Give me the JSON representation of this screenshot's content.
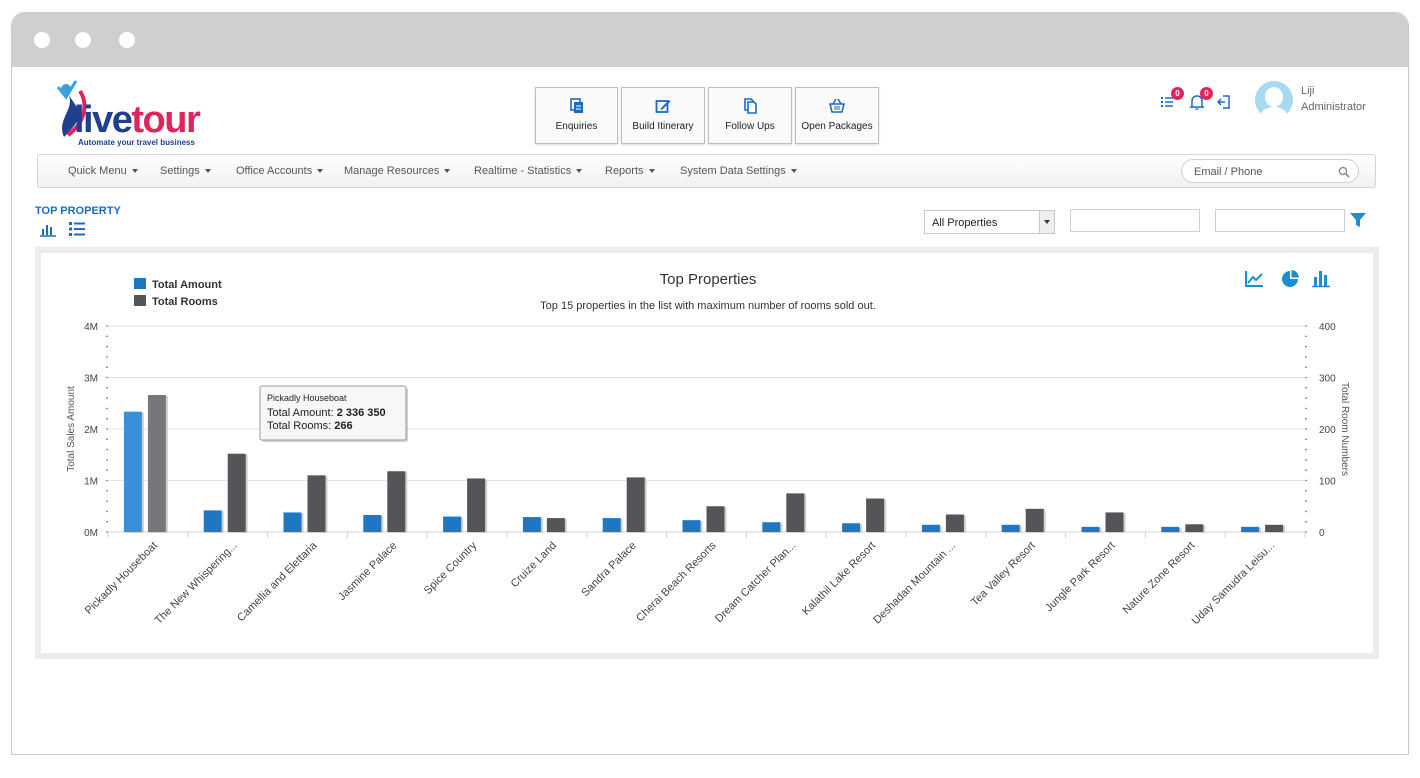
{
  "brand": {
    "logo_text_a": "live",
    "logo_text_b": "tour",
    "tagline": "Automate your travel business"
  },
  "quick_actions": [
    {
      "label": "Enquiries",
      "icon": "copy-icon"
    },
    {
      "label": "Build Itinerary",
      "icon": "edit-icon"
    },
    {
      "label": "Follow Ups",
      "icon": "files-icon"
    },
    {
      "label": "Open Packages",
      "icon": "basket-icon"
    }
  ],
  "header": {
    "tasks_badge": "0",
    "notifications_badge": "0",
    "user_name": "Liji",
    "user_role": "Administrator"
  },
  "nav": {
    "items": [
      "Quick Menu",
      "Settings",
      "Office Accounts",
      "Manage Resources",
      "Realtime - Statistics",
      "Reports",
      "System Data Settings"
    ],
    "search_placeholder": "Email / Phone"
  },
  "page": {
    "title": "TOP PROPERTY",
    "property_filter": "All Properties"
  },
  "colors": {
    "accent": "#1a6bc6",
    "amount_series": "#1f77c4",
    "rooms_series": "#555559",
    "badge": "#e0245e"
  },
  "chart_data": {
    "type": "bar",
    "title": "Top Properties",
    "subtitle": "Top 15 properties in the list with maximum number of rooms sold out.",
    "ylabel": "Total Sales Amount",
    "y2label": "Total Room Numbers",
    "ylim": [
      0,
      4000000
    ],
    "y2lim": [
      0,
      400
    ],
    "yticks": [
      "0M",
      "1M",
      "2M",
      "3M",
      "4M"
    ],
    "y2ticks": [
      "0",
      "100",
      "200",
      "300",
      "400"
    ],
    "legend_position": "top-left",
    "categories": [
      "Pickadly Houseboat",
      "The New Whispering...",
      "Camellia and Elettaria",
      "Jasmine Palace",
      "Spice Country",
      "Cruize Land",
      "Sandra Palace",
      "Cherai Beach Resorts",
      "Dream Catcher Plan...",
      "Kalathil Lake Resort",
      "Deshadan Mountain ...",
      "Tea Valley Resort",
      "Jungle Park Resort",
      "Nature Zone Resort",
      "Uday Samudra Leisu..."
    ],
    "series": [
      {
        "name": "Total Amount",
        "axis": "left",
        "values": [
          2336350,
          420000,
          380000,
          330000,
          300000,
          290000,
          270000,
          230000,
          190000,
          170000,
          140000,
          140000,
          100000,
          100000,
          100000
        ]
      },
      {
        "name": "Total Rooms",
        "axis": "right",
        "values": [
          266,
          152,
          110,
          118,
          104,
          27,
          106,
          50,
          75,
          65,
          34,
          45,
          38,
          15,
          14
        ]
      }
    ],
    "tooltip": {
      "title": "Pickadly Houseboat",
      "amount_label": "Total Amount: ",
      "amount_value": "2 336 350",
      "rooms_label": "Total Rooms: ",
      "rooms_value": "266"
    },
    "grid": true
  }
}
